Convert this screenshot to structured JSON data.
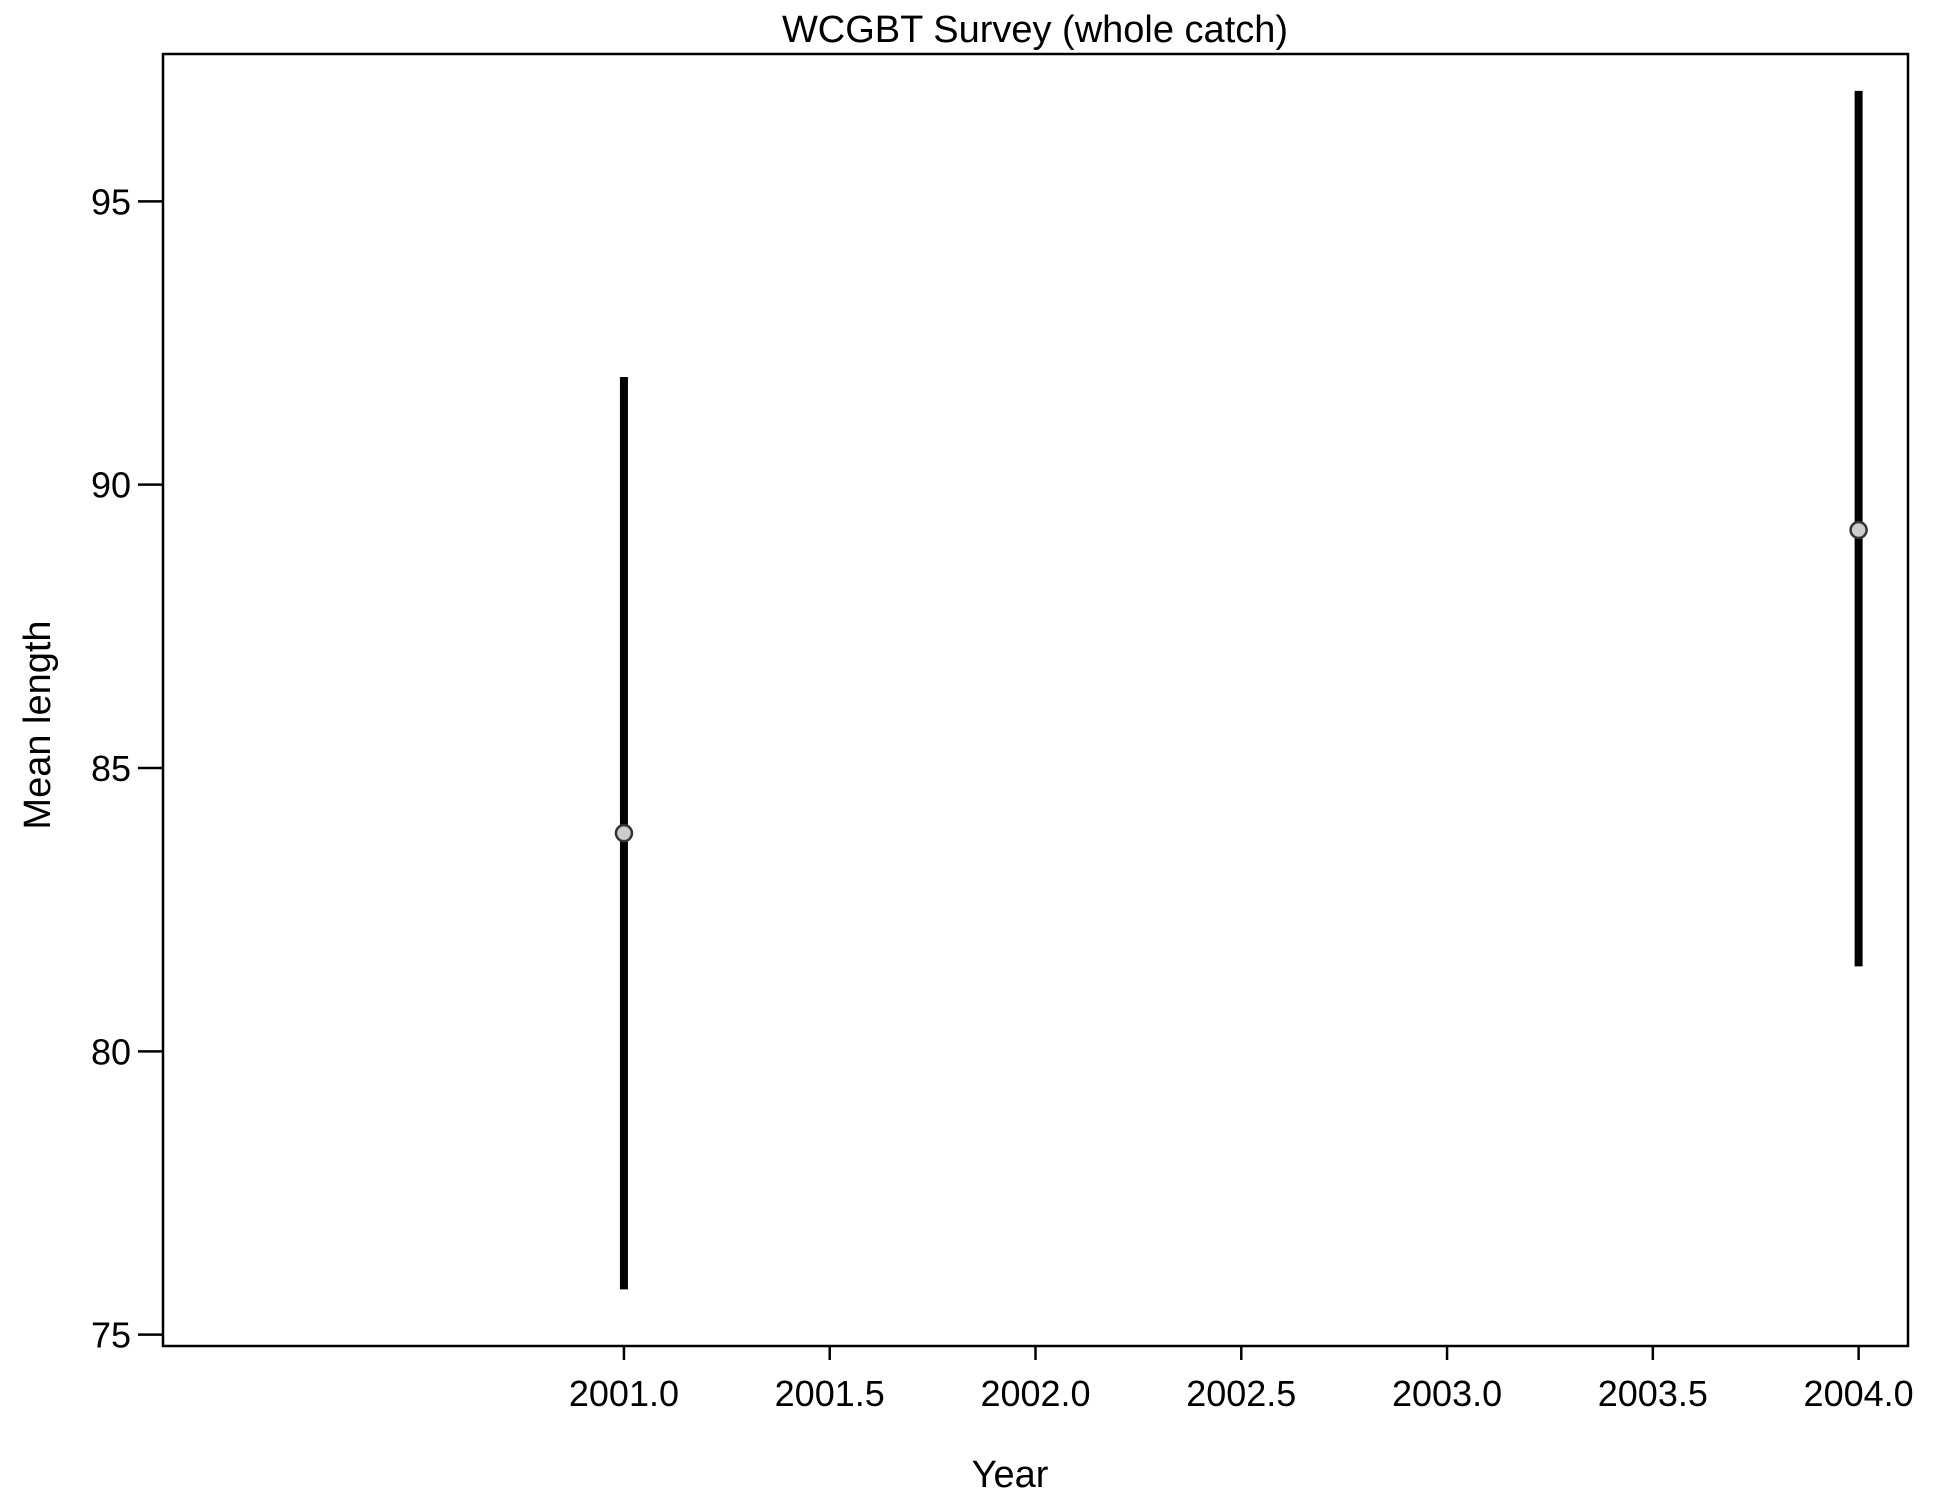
{
  "chart_data": {
    "type": "scatter",
    "title": "WCGBT Survey (whole catch)",
    "xlabel": "Year",
    "ylabel": "Mean length",
    "xlim": [
      1999.88,
      2004.12
    ],
    "ylim": [
      74.8,
      97.6
    ],
    "x_ticks": [
      2001.0,
      2001.5,
      2002.0,
      2002.5,
      2003.0,
      2003.5,
      2004.0
    ],
    "x_tick_labels": [
      "2001.0",
      "2001.5",
      "2002.0",
      "2002.5",
      "2003.0",
      "2003.5",
      "2004.0"
    ],
    "y_ticks": [
      75,
      80,
      85,
      90,
      95
    ],
    "y_tick_labels": [
      "75",
      "80",
      "85",
      "90",
      "95"
    ],
    "grid": false,
    "points": [
      {
        "x": 2001.0,
        "y": 83.85,
        "lower": 75.8,
        "upper": 91.9
      },
      {
        "x": 2004.0,
        "y": 89.2,
        "lower": 81.5,
        "upper": 96.95
      }
    ],
    "colors": {
      "errorbar": "#000000",
      "point_fill": "#cccccc",
      "point_stroke": "#333333",
      "axis": "#000000"
    }
  }
}
